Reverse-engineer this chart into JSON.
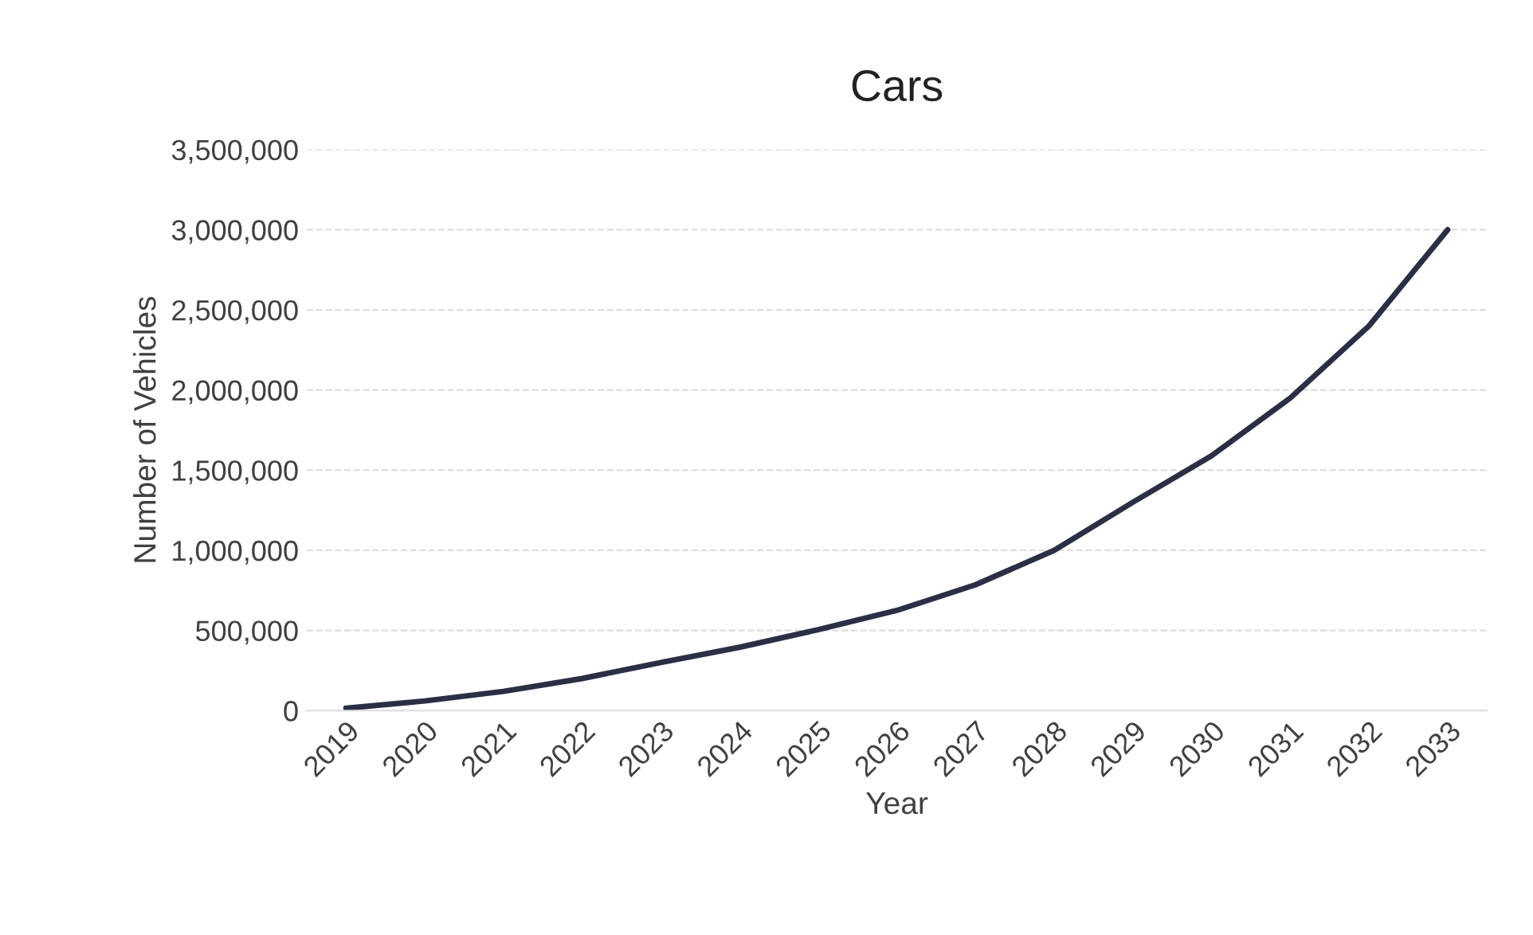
{
  "chart_data": {
    "type": "line",
    "title": "Cars",
    "xlabel": "Year",
    "ylabel": "Number of Vehicles",
    "categories": [
      "2019",
      "2020",
      "2021",
      "2022",
      "2023",
      "2024",
      "2025",
      "2026",
      "2027",
      "2028",
      "2029",
      "2030",
      "2031",
      "2032",
      "2033"
    ],
    "series": [
      {
        "color": "#2b2f45",
        "values": [
          15000,
          60000,
          120000,
          200000,
          300000,
          395000,
          505000,
          625000,
          785000,
          1000000,
          1300000,
          1590000,
          1950000,
          2400000,
          3000000
        ]
      }
    ],
    "ylim": [
      0,
      3500000
    ],
    "yticks": [
      {
        "value": 0,
        "label": "0"
      },
      {
        "value": 500000,
        "label": "500,000"
      },
      {
        "value": 1000000,
        "label": "1,000,000"
      },
      {
        "value": 1500000,
        "label": "1,500,000"
      },
      {
        "value": 2000000,
        "label": "2,000,000"
      },
      {
        "value": 2500000,
        "label": "2,500,000"
      },
      {
        "value": 3000000,
        "label": "3,000,000"
      },
      {
        "value": 3500000,
        "label": "3,500,000"
      }
    ],
    "grid": "y",
    "legend": false,
    "marker": "none",
    "line_style": "solid"
  }
}
